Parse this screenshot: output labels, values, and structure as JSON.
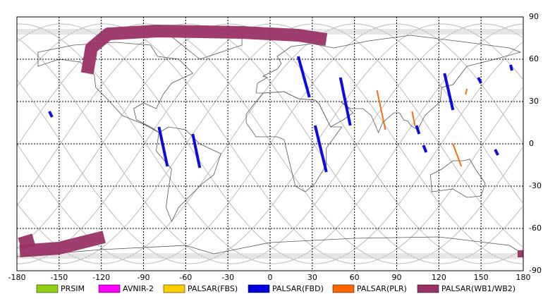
{
  "map": {
    "xlim": [
      -180,
      180
    ],
    "ylim": [
      -90,
      90
    ],
    "xticks": [
      -180,
      -150,
      -120,
      -90,
      -60,
      -30,
      0,
      30,
      60,
      90,
      120,
      150,
      180
    ],
    "yticks": [
      90,
      60,
      30,
      0,
      -30,
      -60,
      -90
    ],
    "grid": true,
    "legend": [
      {
        "name": "PRSIM",
        "color": "#8fd016"
      },
      {
        "name": "AVNIR-2",
        "color": "#ff00ff"
      },
      {
        "name": "PALSAR(FBS)",
        "color": "#ffcc00"
      },
      {
        "name": "PALSAR(FBD)",
        "color": "#0000dd"
      },
      {
        "name": "PALSAR(PLR)",
        "color": "#ff6600"
      },
      {
        "name": "PALSAR(WB1/WB2)",
        "color": "#993366"
      }
    ],
    "swaths": [
      {
        "sensor": 5,
        "width": 9,
        "points": [
          [
            -130,
            50
          ],
          [
            -127,
            68
          ],
          [
            -115,
            78
          ],
          [
            -80,
            80
          ],
          [
            -20,
            79
          ],
          [
            20,
            77
          ],
          [
            40,
            74
          ]
        ]
      },
      {
        "sensor": 5,
        "width": 9,
        "points": [
          [
            -178,
            -71
          ],
          [
            -168,
            -68
          ]
        ]
      },
      {
        "sensor": 5,
        "width": 9,
        "points": [
          [
            -178,
            -76
          ],
          [
            -150,
            -74
          ],
          [
            -118,
            -66
          ]
        ]
      },
      {
        "sensor": 5,
        "width": 5,
        "points": [
          [
            176,
            -78
          ],
          [
            180,
            -78
          ]
        ]
      },
      {
        "sensor": 3,
        "width": 2,
        "points": [
          [
            -157,
            23
          ],
          [
            -155,
            19
          ]
        ]
      },
      {
        "sensor": 3,
        "width": 2,
        "points": [
          [
            -79,
            12
          ],
          [
            -73,
            -16
          ]
        ]
      },
      {
        "sensor": 3,
        "width": 2,
        "points": [
          [
            -55,
            7
          ],
          [
            -50,
            -17
          ]
        ]
      },
      {
        "sensor": 3,
        "width": 2,
        "points": [
          [
            20,
            62
          ],
          [
            28,
            33
          ]
        ]
      },
      {
        "sensor": 3,
        "width": 2,
        "points": [
          [
            32,
            13
          ],
          [
            40,
            -20
          ]
        ]
      },
      {
        "sensor": 3,
        "width": 2,
        "points": [
          [
            50,
            47
          ],
          [
            57,
            13
          ]
        ]
      },
      {
        "sensor": 3,
        "width": 2,
        "points": [
          [
            124,
            50
          ],
          [
            130,
            24
          ]
        ]
      },
      {
        "sensor": 3,
        "width": 2,
        "points": [
          [
            148,
            47
          ],
          [
            150,
            43
          ]
        ]
      },
      {
        "sensor": 3,
        "width": 2,
        "points": [
          [
            171,
            56
          ],
          [
            172,
            52
          ]
        ]
      },
      {
        "sensor": 3,
        "width": 2,
        "points": [
          [
            104,
            13
          ],
          [
            106,
            7
          ]
        ]
      },
      {
        "sensor": 3,
        "width": 2,
        "points": [
          [
            109,
            -1
          ],
          [
            111,
            -6
          ]
        ]
      },
      {
        "sensor": 3,
        "width": 2,
        "points": [
          [
            160,
            -4
          ],
          [
            162,
            -8
          ]
        ]
      },
      {
        "sensor": 4,
        "width": 1,
        "points": [
          [
            76,
            38
          ],
          [
            82,
            10
          ]
        ]
      },
      {
        "sensor": 4,
        "width": 1,
        "points": [
          [
            101,
            23
          ],
          [
            103,
            13
          ]
        ]
      },
      {
        "sensor": 4,
        "width": 1,
        "points": [
          [
            130,
            0
          ],
          [
            136,
            -16
          ]
        ]
      },
      {
        "sensor": 4,
        "width": 1,
        "points": [
          [
            140,
            39
          ],
          [
            139,
            35
          ]
        ]
      }
    ]
  }
}
